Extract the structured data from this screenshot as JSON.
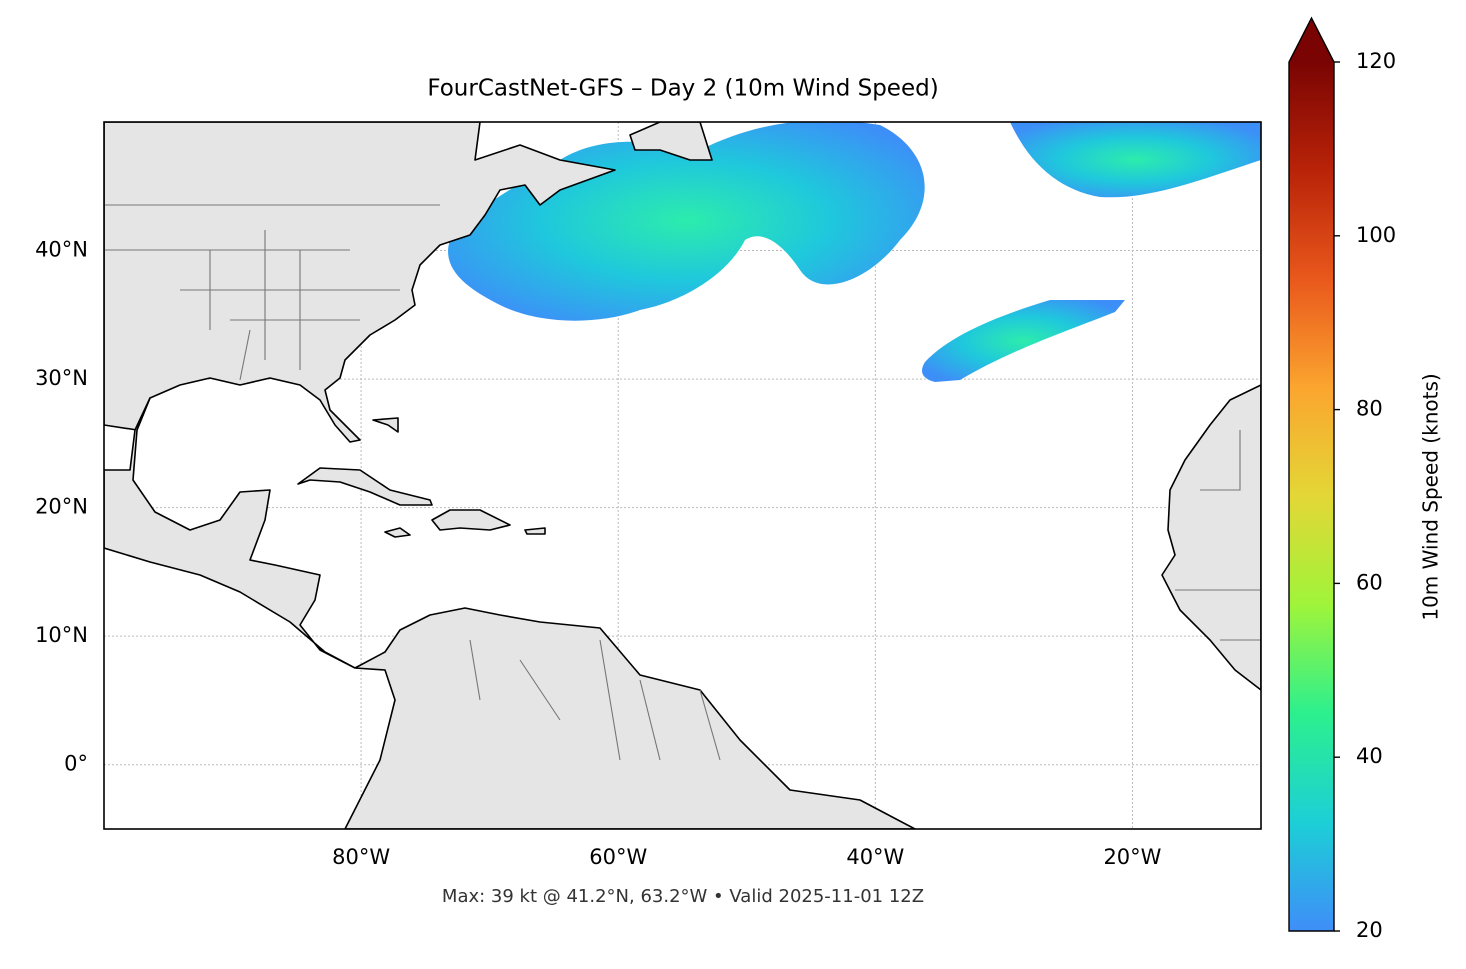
{
  "chart_data": {
    "type": "map",
    "title": "FourCastNet-GFS – Day 2 (10m Wind Speed)",
    "caption": "Max: 39 kt @ 41.2°N, 63.2°W • Valid 2025-11-01 12Z",
    "xlim": [
      -100,
      -10
    ],
    "ylim": [
      -5,
      50
    ],
    "xticks": [
      {
        "value": -80,
        "label": "80°W"
      },
      {
        "value": -60,
        "label": "60°W"
      },
      {
        "value": -40,
        "label": "40°W"
      },
      {
        "value": -20,
        "label": "20°W"
      }
    ],
    "yticks": [
      {
        "value": 0,
        "label": "0°"
      },
      {
        "value": 10,
        "label": "10°N"
      },
      {
        "value": 20,
        "label": "20°N"
      },
      {
        "value": 30,
        "label": "30°N"
      },
      {
        "value": 40,
        "label": "40°N"
      }
    ],
    "grid": true,
    "colorbar": {
      "label": "10m Wind Speed (knots)",
      "lim": [
        20,
        120
      ],
      "ticks": [
        20,
        40,
        60,
        80,
        100,
        120
      ],
      "colors": [
        "#3f8ef8",
        "#1ccfd6",
        "#2cf08e",
        "#9ff43a",
        "#e3d736",
        "#fba52f",
        "#e9581c",
        "#b92308",
        "#7a0403"
      ]
    }
  }
}
